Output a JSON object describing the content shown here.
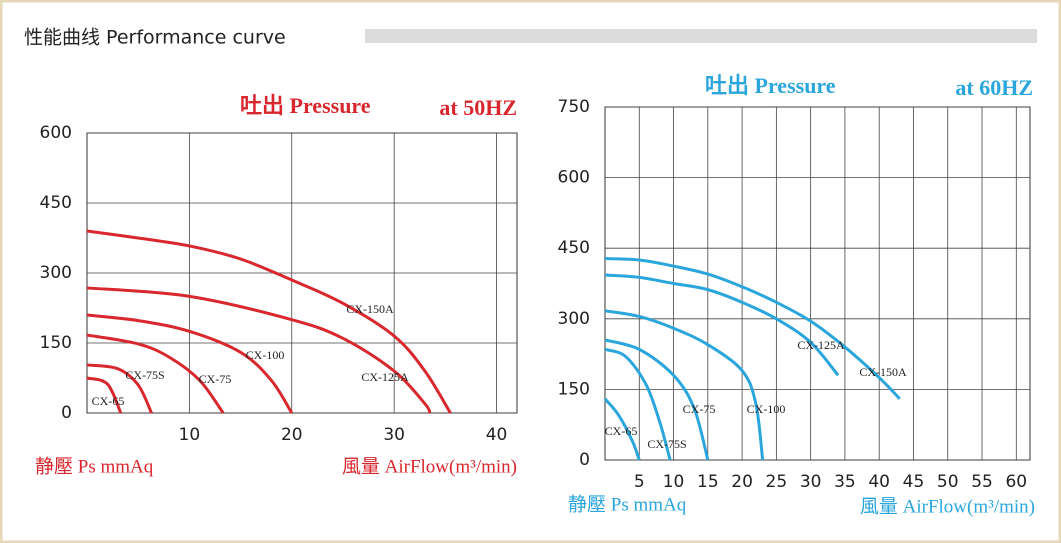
{
  "header": {
    "title": "性能曲线 Performance curve"
  },
  "chart_data": [
    {
      "type": "line",
      "title": "吐出 Pressure",
      "annotation": "at 50HZ",
      "ylabel": "静壓 Ps mmAq",
      "xlabel": "風量 AirFlow(m³/min)",
      "color": "#d9272e",
      "xlim": [
        0,
        42
      ],
      "xticks": [
        10,
        20,
        30,
        40
      ],
      "ylim": [
        0,
        600
      ],
      "yticks": [
        0,
        150,
        300,
        450,
        600
      ],
      "grid": true,
      "series": [
        {
          "name": "CX-150A",
          "x": [
            0,
            5,
            10,
            15,
            20,
            25,
            30,
            33,
            35.5
          ],
          "values": [
            390,
            375,
            358,
            330,
            285,
            235,
            165,
            90,
            0
          ]
        },
        {
          "name": "CX-125A",
          "x": [
            0,
            10,
            20,
            25,
            30,
            33,
            33.5
          ],
          "values": [
            268,
            250,
            200,
            160,
            90,
            20,
            0
          ]
        },
        {
          "name": "CX-100",
          "x": [
            0,
            5,
            10,
            15,
            18,
            20
          ],
          "values": [
            210,
            198,
            175,
            130,
            70,
            0
          ]
        },
        {
          "name": "CX-75",
          "x": [
            0,
            5,
            8,
            11,
            13.3
          ],
          "values": [
            167,
            148,
            120,
            70,
            0
          ]
        },
        {
          "name": "CX-75S",
          "x": [
            0,
            3,
            5,
            6.3
          ],
          "values": [
            103,
            95,
            60,
            0
          ]
        },
        {
          "name": "CX-65",
          "x": [
            0,
            2,
            3.3
          ],
          "values": [
            75,
            62,
            0
          ]
        }
      ]
    },
    {
      "type": "line",
      "title": "吐出 Pressure",
      "annotation": "at 60HZ",
      "ylabel": "静壓 Ps mmAq",
      "xlabel": "風量 AirFlow(m³/min)",
      "color": "#2aa6dc",
      "xlim": [
        0,
        62
      ],
      "xticks": [
        5,
        10,
        15,
        20,
        25,
        30,
        35,
        40,
        45,
        50,
        55,
        60
      ],
      "ylim": [
        0,
        750
      ],
      "yticks": [
        0,
        150,
        300,
        450,
        600,
        750
      ],
      "grid": true,
      "series": [
        {
          "name": "CX-150A",
          "x": [
            0,
            5,
            10,
            15,
            20,
            25,
            30,
            35,
            40,
            43
          ],
          "values": [
            428,
            425,
            412,
            395,
            368,
            335,
            295,
            240,
            175,
            130
          ]
        },
        {
          "name": "CX-125A",
          "x": [
            0,
            5,
            10,
            15,
            20,
            25,
            30,
            34
          ],
          "values": [
            393,
            388,
            375,
            362,
            335,
            300,
            250,
            180
          ]
        },
        {
          "name": "CX-100",
          "x": [
            0,
            5,
            10,
            15,
            20,
            22,
            23
          ],
          "values": [
            317,
            305,
            280,
            245,
            190,
            120,
            0
          ]
        },
        {
          "name": "CX-75",
          "x": [
            0,
            5,
            10,
            13,
            15
          ],
          "values": [
            255,
            235,
            180,
            110,
            0
          ]
        },
        {
          "name": "CX-75S",
          "x": [
            0,
            3,
            6,
            8,
            9.5
          ],
          "values": [
            235,
            220,
            160,
            80,
            0
          ]
        },
        {
          "name": "CX-65",
          "x": [
            0,
            2,
            4,
            5
          ],
          "values": [
            130,
            95,
            40,
            0
          ]
        }
      ]
    }
  ]
}
